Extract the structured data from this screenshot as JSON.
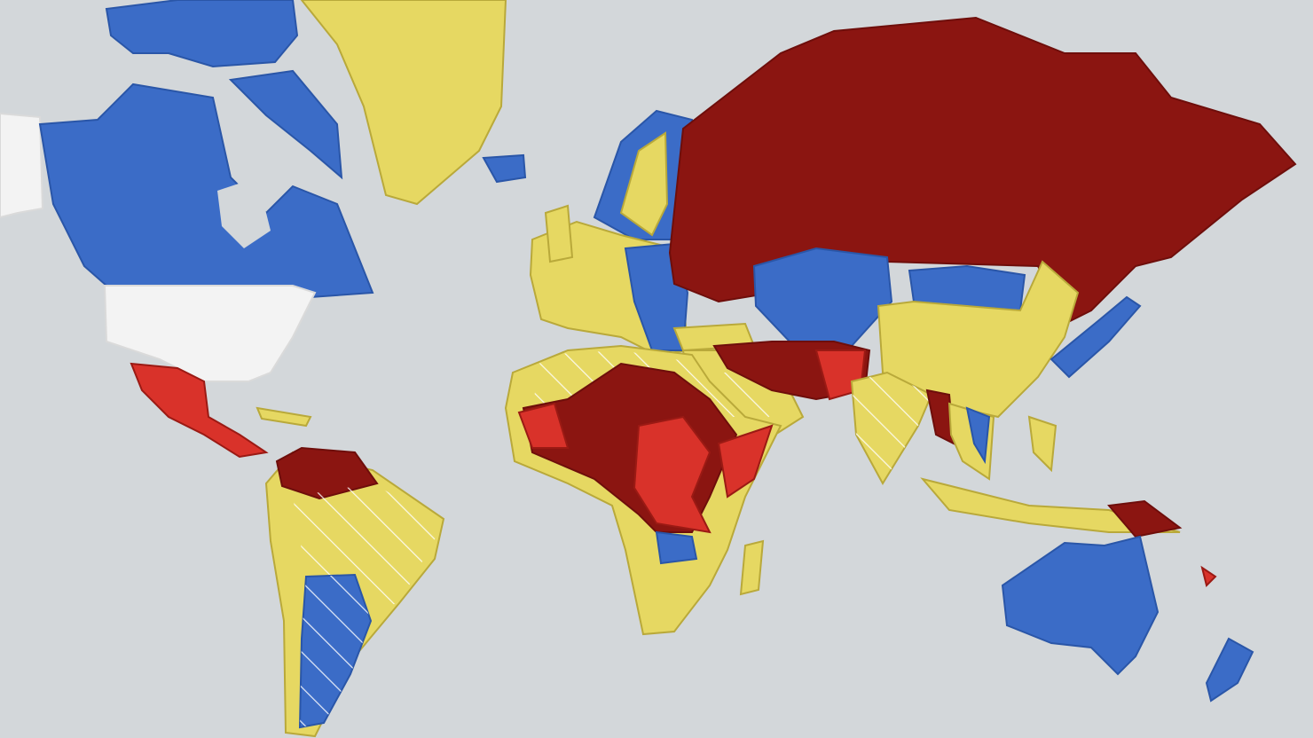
{
  "colors": {
    "ocean": "#d3d7da",
    "blue": "#3b6cc7",
    "yellow": "#e6d862",
    "dark_red": "#8b1511",
    "red": "#d9322a",
    "white": "#f3f3f3",
    "hatch": "#ffffff"
  }
}
